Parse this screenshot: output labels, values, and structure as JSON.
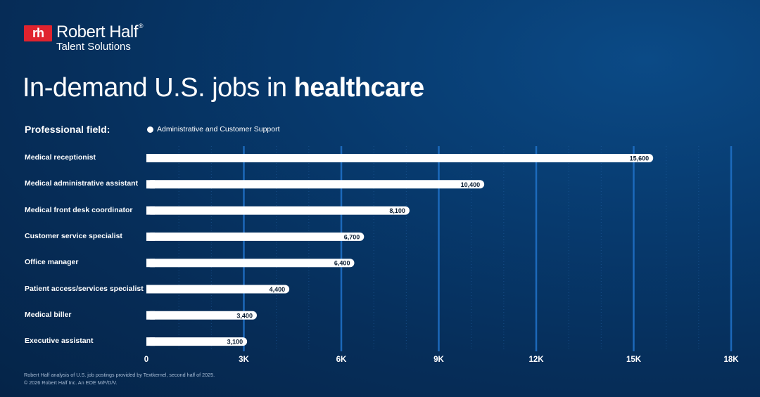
{
  "brand": {
    "mark": "rh",
    "name": "Robert Half",
    "registered": "®",
    "sub": "Talent Solutions",
    "color": "#e0232e"
  },
  "title": {
    "prefix": "In-demand U.S. jobs in ",
    "emphasis": "healthcare"
  },
  "legend": {
    "field_label": "Professional field:",
    "series_label": "Administrative and Customer Support"
  },
  "chart_data": {
    "type": "bar",
    "orientation": "horizontal",
    "categories": [
      "Medical receptionist",
      "Medical administrative assistant",
      "Medical front desk coordinator",
      "Customer service specialist",
      "Office manager",
      "Patient access/services specialist",
      "Medical biller",
      "Executive assistant"
    ],
    "values": [
      15600,
      10400,
      8100,
      6700,
      6400,
      4400,
      3400,
      3100
    ],
    "value_labels": [
      "15,600",
      "10,400",
      "8,100",
      "6,700",
      "6,400",
      "4,400",
      "3,400",
      "3,100"
    ],
    "series_name": "Administrative and Customer Support",
    "xlim": [
      0,
      18000
    ],
    "x_ticks": [
      0,
      3000,
      6000,
      9000,
      12000,
      15000,
      18000
    ],
    "x_tick_labels": [
      "0",
      "3K",
      "6K",
      "9K",
      "12K",
      "15K",
      "18K"
    ],
    "grid": true,
    "bar_color": "#ffffff",
    "grid_color": "#1f6fc4"
  },
  "footnote": {
    "line1": "Robert Half analysis of U.S. job postings provided by Textkernel, second half of 2025.",
    "line2": "© 2026 Robert Half Inc. An EOE M/F/D/V."
  }
}
